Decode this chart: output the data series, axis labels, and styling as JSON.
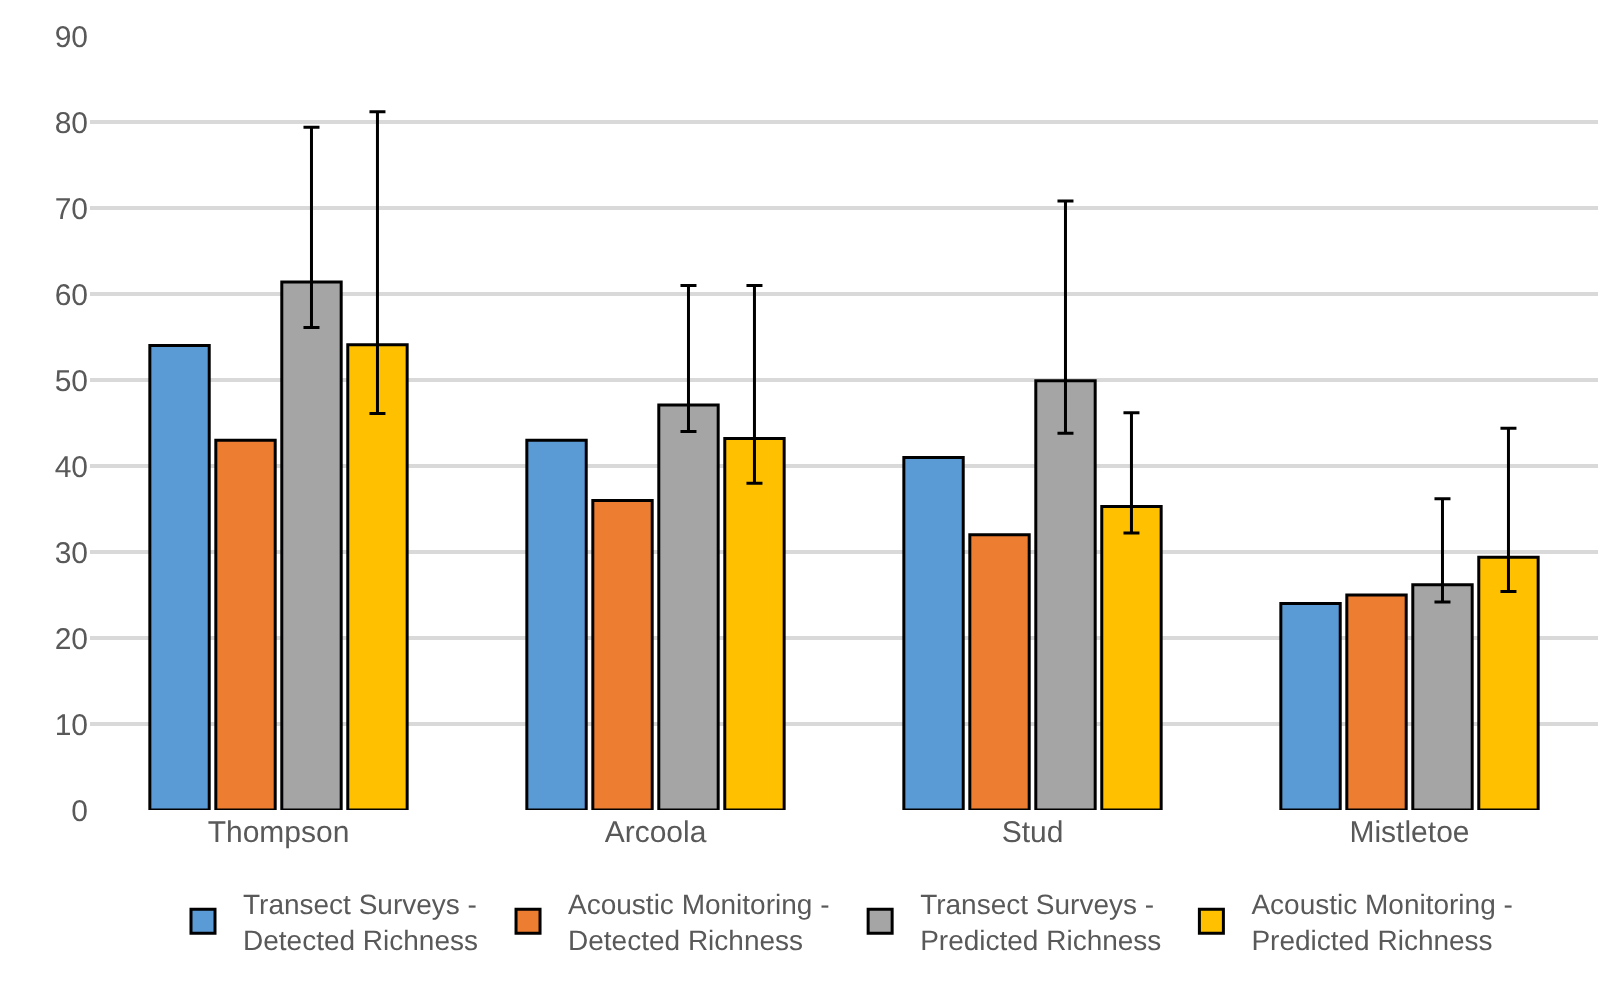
{
  "chart_data": {
    "type": "bar",
    "categories": [
      "Thompson",
      "Arcoola",
      "Stud",
      "Mistletoe"
    ],
    "series": [
      {
        "name": "Transect Surveys -\nDetected Richness",
        "color": "#5b9bd5",
        "values": [
          54,
          43,
          41,
          24
        ]
      },
      {
        "name": "Acoustic Monitoring -\nDetected Richness",
        "color": "#ed7d31",
        "values": [
          43,
          36,
          32,
          25
        ]
      },
      {
        "name": "Transect Surveys -\nPredicted Richness",
        "color": "#a5a5a5",
        "values": [
          61.4,
          47.1,
          49.9,
          26.2
        ],
        "errors": [
          [
            56.1,
            79.4
          ],
          [
            44,
            61
          ],
          [
            43.8,
            70.8
          ],
          [
            24.2,
            36.2
          ]
        ]
      },
      {
        "name": "Acoustic Monitoring -\nPredicted Richness",
        "color": "#ffc000",
        "values": [
          54.1,
          43.2,
          35.3,
          29.4
        ],
        "errors": [
          [
            46.1,
            81.2
          ],
          [
            38,
            61
          ],
          [
            32.2,
            46.2
          ],
          [
            25.4,
            44.4
          ]
        ]
      }
    ],
    "ylim": [
      0,
      90
    ],
    "yticks": [
      0,
      10,
      20,
      30,
      40,
      50,
      60,
      70,
      80,
      90
    ],
    "grid": "y",
    "legend": "bottom"
  }
}
